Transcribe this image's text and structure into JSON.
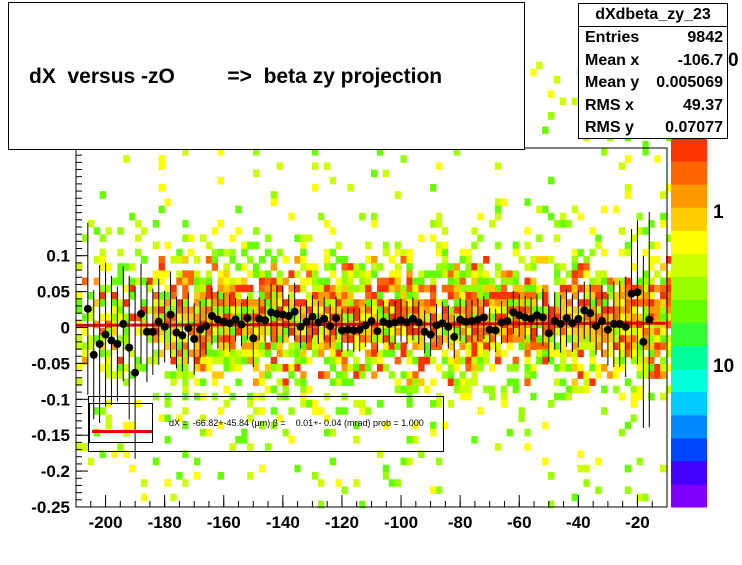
{
  "title": "dX  versus -zO         =>  beta zy projection",
  "stats": {
    "name": "dXdbeta_zy_23",
    "rows": [
      {
        "key": "Entries",
        "value": "9842"
      },
      {
        "key": "Mean x",
        "value": "-106.7"
      },
      {
        "key": "Mean y",
        "value": "0.005069"
      },
      {
        "key": "RMS x",
        "value": "49.37"
      },
      {
        "key": "RMS y",
        "value": "0.07077"
      }
    ]
  },
  "fit_legend": "dX =  -66.82+-45.84 (μm) β =    0.01+- 0.04 (mrad) prob = 1.000",
  "colorbar_labels": [
    "0",
    "1",
    "10"
  ],
  "colors": {
    "fit_line": "#e00000",
    "markers": "#000000",
    "palette": [
      "#7f00ff",
      "#4400ff",
      "#0044ff",
      "#0088ff",
      "#00ccff",
      "#00ffdd",
      "#00ff99",
      "#33ff33",
      "#66ff00",
      "#99ff00",
      "#ccff00",
      "#ffff00",
      "#ffcc00",
      "#ff9900",
      "#ff6600",
      "#ff3300"
    ]
  },
  "chart_data": {
    "type": "scatter",
    "xlim": [
      -210,
      -10
    ],
    "ylim": [
      -0.25,
      0.25
    ],
    "x_ticks": [
      -200,
      -180,
      -160,
      -140,
      -120,
      -100,
      -80,
      -60,
      -40,
      -20
    ],
    "y_ticks": [
      -0.25,
      -0.2,
      -0.15,
      -0.1,
      -0.05,
      0,
      0.05,
      0.1
    ],
    "y_tick_labels": [
      "-0.25",
      "-0.2",
      "-0.15",
      "-0.1",
      "-0.05",
      "0",
      "0.05",
      "0.1"
    ],
    "fit_line": {
      "y_at_xmin": 0.003,
      "y_at_xmax": 0.006
    },
    "profile": {
      "x": [
        -206,
        -204,
        -202,
        -200,
        -198,
        -196,
        -194,
        -192,
        -190,
        -188,
        -186,
        -184,
        -182,
        -180,
        -178,
        -176,
        -174,
        -172,
        -170,
        -168,
        -166,
        -164,
        -162,
        -160,
        -158,
        -156,
        -154,
        -152,
        -150,
        -148,
        -146,
        -144,
        -142,
        -140,
        -138,
        -136,
        -134,
        -132,
        -130,
        -128,
        -126,
        -124,
        -122,
        -120,
        -118,
        -116,
        -114,
        -112,
        -110,
        -108,
        -106,
        -104,
        -102,
        -100,
        -98,
        -96,
        -94,
        -92,
        -90,
        -88,
        -86,
        -84,
        -82,
        -80,
        -78,
        -76,
        -74,
        -72,
        -70,
        -68,
        -66,
        -64,
        -62,
        -60,
        -58,
        -56,
        -54,
        -52,
        -50,
        -48,
        -46,
        -44,
        -42,
        -40,
        -38,
        -36,
        -34,
        -32,
        -30,
        -28,
        -26,
        -24,
        -22,
        -20,
        -18,
        -16
      ],
      "y": [
        0.026,
        -0.038,
        -0.023,
        -0.01,
        -0.018,
        -0.023,
        0.005,
        -0.028,
        -0.063,
        0.019,
        -0.006,
        -0.006,
        0.008,
        0.001,
        0.018,
        -0.007,
        -0.011,
        -0.001,
        -0.016,
        -0.003,
        0.002,
        0.016,
        0.011,
        0.008,
        0.006,
        0.011,
        0.004,
        0.013,
        -0.015,
        0.012,
        0.01,
        0.021,
        0.019,
        0.018,
        0.016,
        0.022,
        0.001,
        0.008,
        0.015,
        0.007,
        0.012,
        0.002,
        0.013,
        -0.004,
        -0.003,
        -0.004,
        -0.003,
        0.003,
        0.009,
        -0.005,
        0.008,
        0.005,
        0.007,
        0.01,
        0.007,
        0.012,
        0.007,
        -0.006,
        -0.01,
        0.003,
        0.006,
        0.001,
        -0.013,
        0.011,
        0.008,
        0.009,
        0.011,
        0.014,
        -0.003,
        -0.004,
        0.007,
        0.009,
        0.021,
        0.017,
        0.014,
        0.012,
        0.017,
        0.014,
        -0.008,
        0.009,
        0.005,
        0.013,
        0.006,
        0.012,
        0.024,
        0.02,
        0.002,
        0.009,
        -0.003,
        0.005,
        0.005,
        0.001,
        0.047,
        0.049,
        -0.02,
        0.011
      ],
      "err": [
        0.12,
        0.09,
        0.11,
        0.1,
        0.09,
        0.08,
        0.08,
        0.1,
        0.12,
        0.07,
        0.07,
        0.06,
        0.06,
        0.05,
        0.06,
        0.05,
        0.05,
        0.05,
        0.05,
        0.04,
        0.04,
        0.04,
        0.04,
        0.04,
        0.04,
        0.03,
        0.03,
        0.03,
        0.04,
        0.03,
        0.03,
        0.04,
        0.04,
        0.04,
        0.03,
        0.04,
        0.03,
        0.03,
        0.03,
        0.03,
        0.03,
        0.03,
        0.03,
        0.03,
        0.03,
        0.03,
        0.03,
        0.03,
        0.03,
        0.03,
        0.03,
        0.03,
        0.03,
        0.03,
        0.03,
        0.03,
        0.03,
        0.03,
        0.03,
        0.03,
        0.03,
        0.03,
        0.03,
        0.03,
        0.03,
        0.03,
        0.03,
        0.03,
        0.03,
        0.03,
        0.03,
        0.03,
        0.03,
        0.03,
        0.03,
        0.03,
        0.03,
        0.04,
        0.04,
        0.04,
        0.04,
        0.04,
        0.04,
        0.04,
        0.04,
        0.04,
        0.04,
        0.05,
        0.05,
        0.06,
        0.06,
        0.07,
        0.09,
        0.1,
        0.12,
        0.15
      ]
    }
  }
}
